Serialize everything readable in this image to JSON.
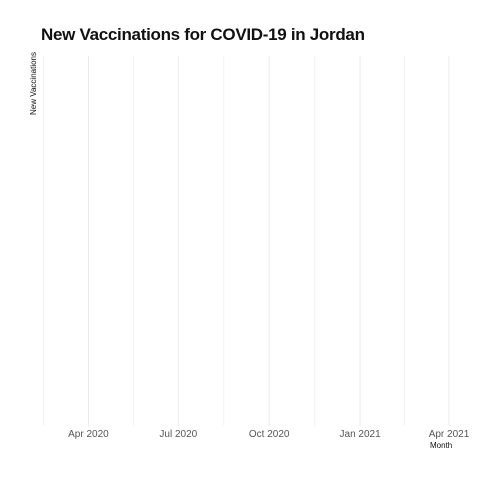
{
  "chart_data": {
    "type": "line",
    "title": "New Vaccinations for COVID-19 in Jordan",
    "xlabel": "Month",
    "ylabel": "New Vaccinations",
    "x_ticks": [
      {
        "date": "2020-04-01",
        "label": "Apr 2020"
      },
      {
        "date": "2020-07-01",
        "label": "Jul 2020"
      },
      {
        "date": "2020-10-01",
        "label": "Oct 2020"
      },
      {
        "date": "2021-01-01",
        "label": "Jan 2021"
      },
      {
        "date": "2021-04-01",
        "label": "Apr 2021"
      }
    ],
    "xlim": [
      "2020-02-15",
      "2021-04-01"
    ],
    "series": [],
    "grid": true,
    "legend": "none"
  }
}
